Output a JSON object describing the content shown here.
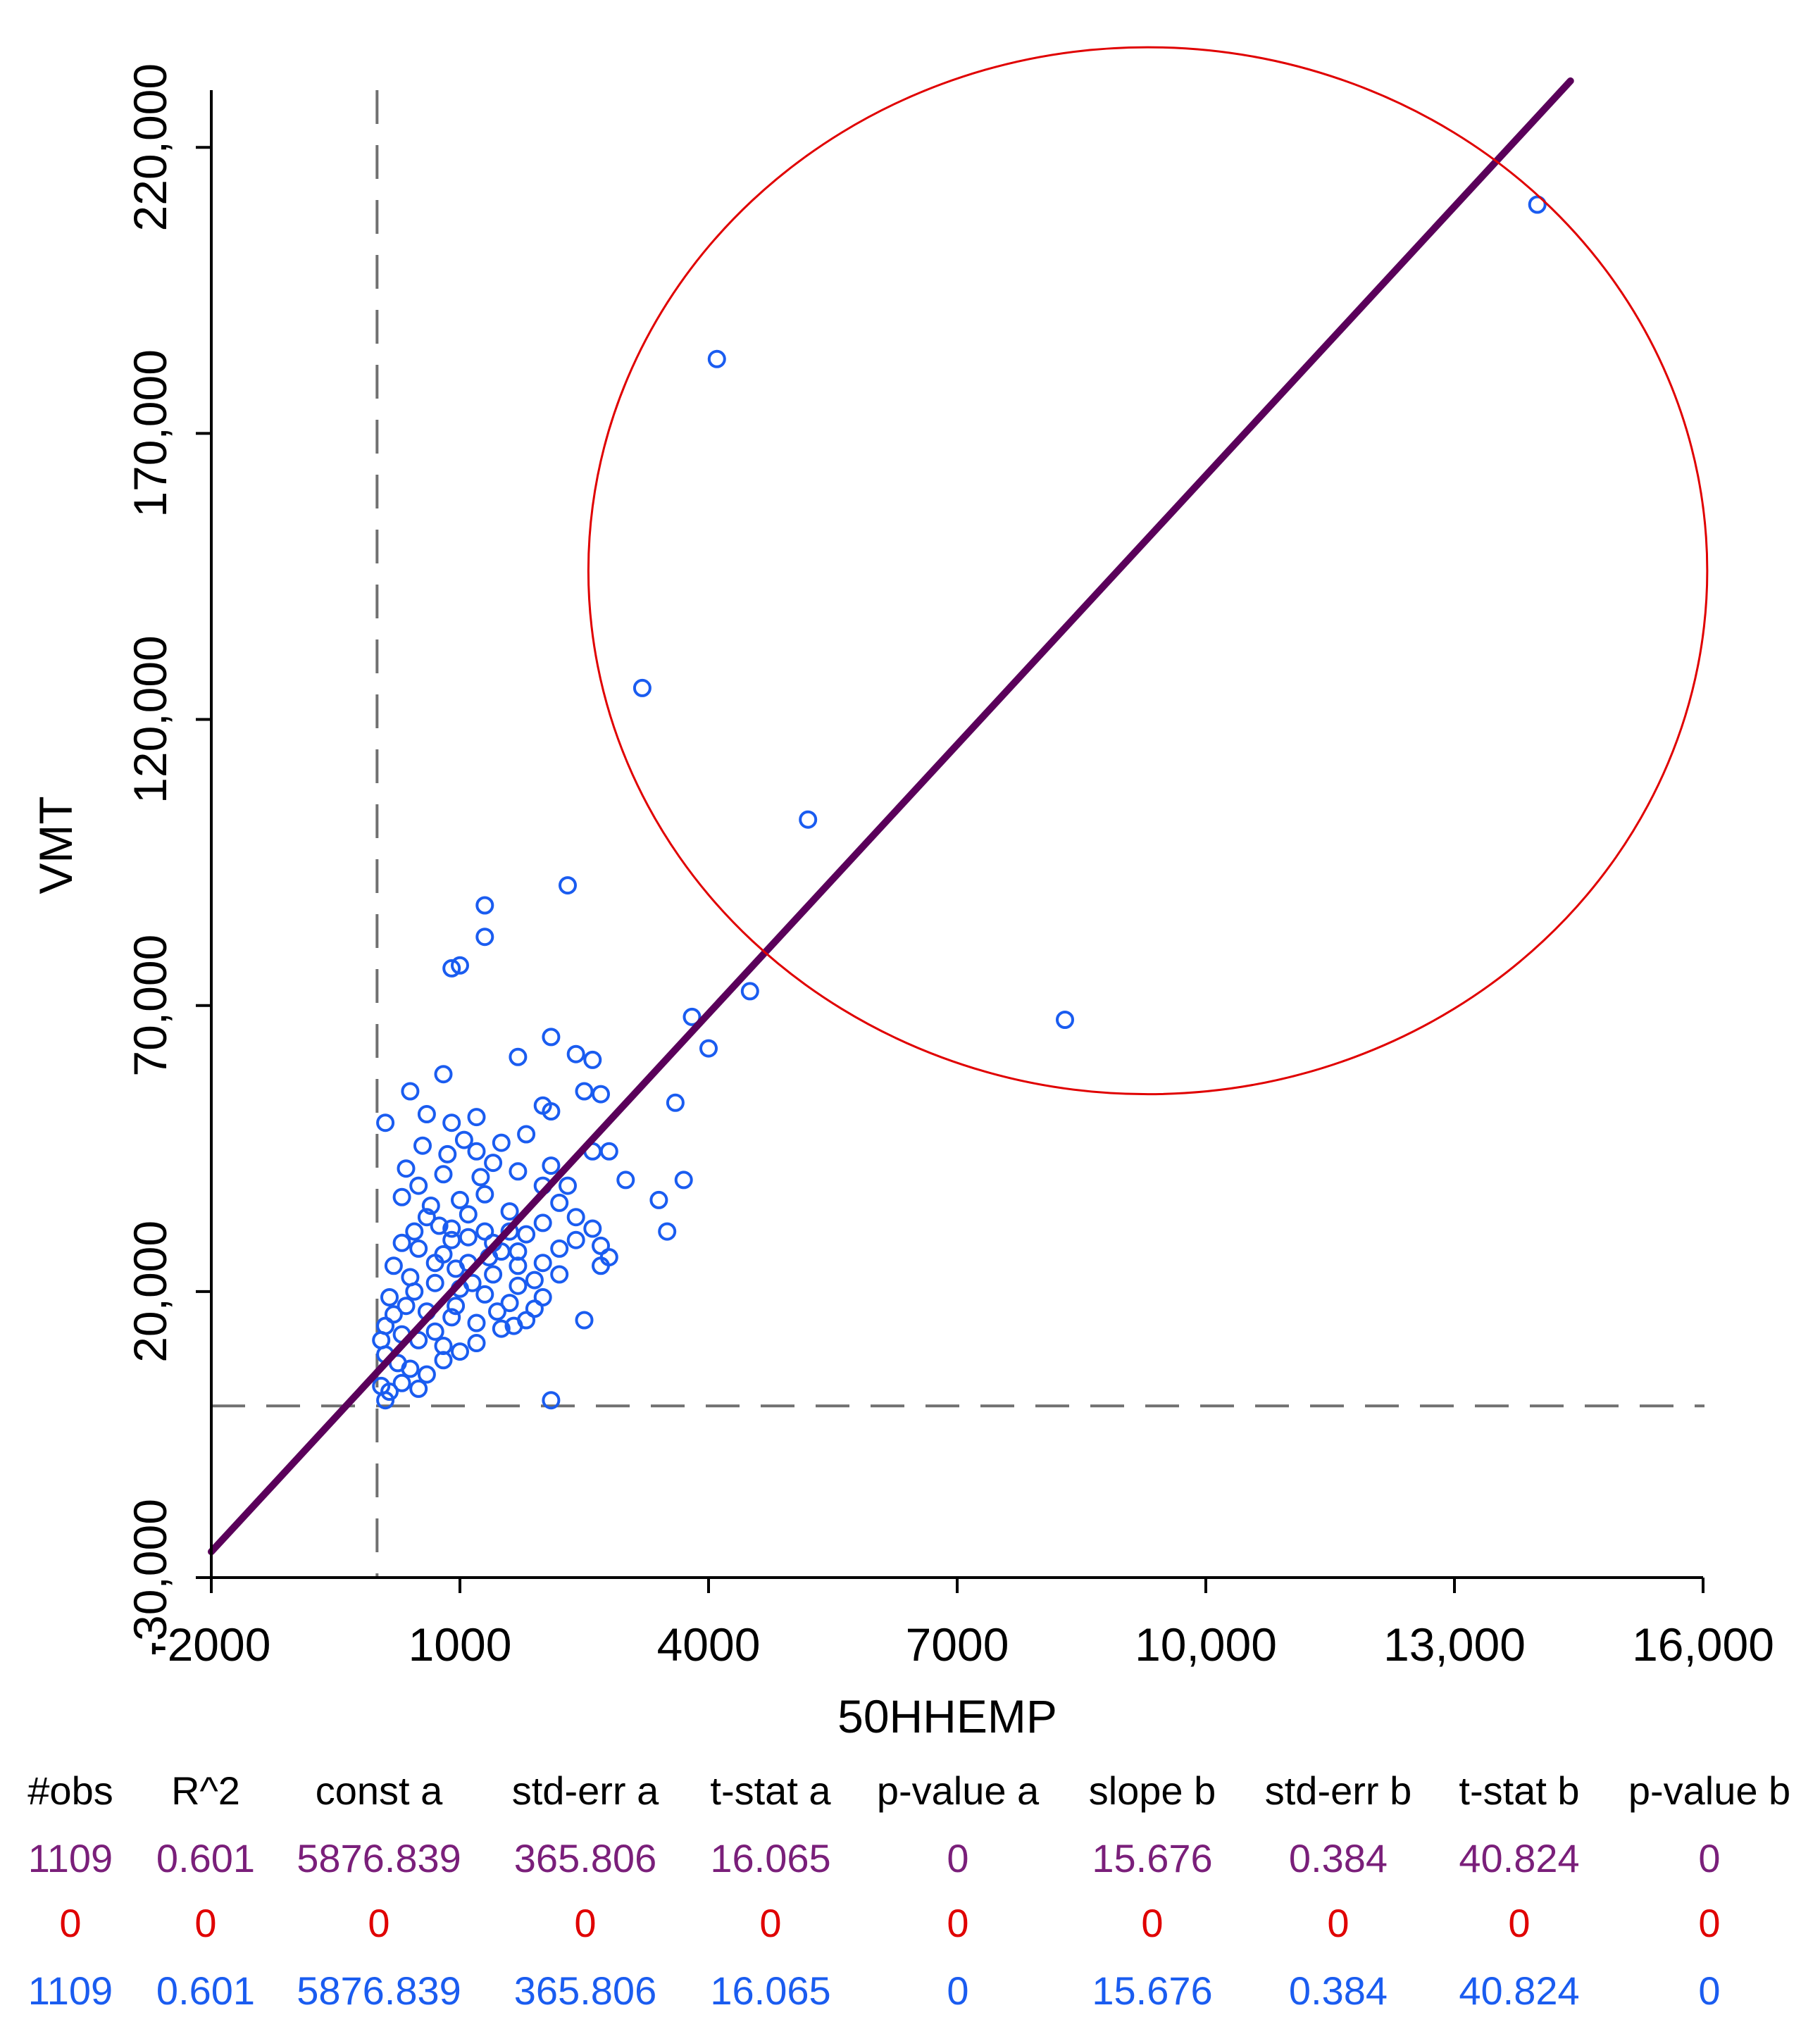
{
  "colors": {
    "point": "#1a5cf0",
    "fit_line": "#5a005a",
    "highlight_circle": "#e00000",
    "reference_lines": "#707070",
    "row_selected": "#7a1f7a",
    "row_unselected": "#e00000",
    "row_all": "#1a5cf0"
  },
  "chart_data": {
    "type": "scatter",
    "title": "",
    "xlabel": "50HHEMP",
    "ylabel": "VMT",
    "xlim": [
      -2000,
      16000
    ],
    "ylim": [
      -30000,
      230000
    ],
    "xticks": [
      -2000,
      1000,
      4000,
      7000,
      10000,
      13000,
      16000
    ],
    "yticks": [
      -30000,
      20000,
      70000,
      120000,
      170000,
      220000
    ],
    "xtick_labels": [
      "-2000",
      "1000",
      "4000",
      "7000",
      "10,000",
      "13,000",
      "16,000"
    ],
    "ytick_labels": [
      "-30,000",
      "20,000",
      "70,000",
      "120,000",
      "170,000",
      "220,000"
    ],
    "reference_lines": {
      "x_mean": 0,
      "y_mean": 0
    },
    "fit_line": {
      "intercept": 5876.839,
      "slope": 15.676,
      "x_range": [
        -2000,
        14400
      ]
    },
    "highlight_circle": {
      "cx": 9300,
      "cy": 146000,
      "rx": 6750,
      "ry": 91500
    },
    "points": [
      [
        14000,
        210000
      ],
      [
        4100,
        183000
      ],
      [
        3200,
        125500
      ],
      [
        5200,
        102500
      ],
      [
        8300,
        67500
      ],
      [
        2300,
        91000
      ],
      [
        1300,
        87500
      ],
      [
        1300,
        82000
      ],
      [
        900,
        76500
      ],
      [
        1000,
        77000
      ],
      [
        4500,
        72500
      ],
      [
        3800,
        68000
      ],
      [
        4000,
        62500
      ],
      [
        2100,
        64500
      ],
      [
        2400,
        61500
      ],
      [
        2600,
        60500
      ],
      [
        1700,
        61000
      ],
      [
        3600,
        53000
      ],
      [
        2500,
        55000
      ],
      [
        2700,
        54500
      ],
      [
        2000,
        52500
      ],
      [
        2100,
        51500
      ],
      [
        800,
        58000
      ],
      [
        400,
        55000
      ],
      [
        100,
        49500
      ],
      [
        3700,
        39500
      ],
      [
        3400,
        36000
      ],
      [
        3000,
        39500
      ],
      [
        2800,
        44500
      ],
      [
        2600,
        44500
      ],
      [
        3500,
        30500
      ],
      [
        2500,
        15000
      ],
      [
        2100,
        1000
      ],
      [
        2800,
        26000
      ],
      [
        2700,
        24500
      ],
      [
        2700,
        28000
      ],
      [
        2600,
        31000
      ],
      [
        2400,
        33000
      ],
      [
        2300,
        38500
      ],
      [
        2200,
        35500
      ],
      [
        600,
        51000
      ],
      [
        900,
        49500
      ],
      [
        1200,
        50500
      ],
      [
        1500,
        46000
      ],
      [
        1800,
        47500
      ],
      [
        1200,
        44500
      ],
      [
        1700,
        41000
      ],
      [
        1400,
        42500
      ],
      [
        2100,
        42000
      ],
      [
        2000,
        38500
      ],
      [
        800,
        40500
      ],
      [
        500,
        38500
      ],
      [
        300,
        36500
      ],
      [
        1000,
        36000
      ],
      [
        1300,
        37000
      ],
      [
        1600,
        34000
      ],
      [
        2000,
        32000
      ],
      [
        1800,
        30000
      ],
      [
        600,
        33000
      ],
      [
        900,
        31000
      ],
      [
        1100,
        29500
      ],
      [
        1400,
        28500
      ],
      [
        1700,
        27000
      ],
      [
        2000,
        25000
      ],
      [
        300,
        28500
      ],
      [
        500,
        27500
      ],
      [
        800,
        26500
      ],
      [
        1100,
        25000
      ],
      [
        1400,
        23000
      ],
      [
        1700,
        21000
      ],
      [
        200,
        24500
      ],
      [
        400,
        22500
      ],
      [
        700,
        21500
      ],
      [
        1000,
        20500
      ],
      [
        1300,
        19500
      ],
      [
        1600,
        18000
      ],
      [
        1900,
        17000
      ],
      [
        150,
        19000
      ],
      [
        350,
        17500
      ],
      [
        600,
        16500
      ],
      [
        900,
        15500
      ],
      [
        1200,
        14500
      ],
      [
        1500,
        13500
      ],
      [
        1800,
        15000
      ],
      [
        100,
        14000
      ],
      [
        300,
        12500
      ],
      [
        500,
        11500
      ],
      [
        800,
        10500
      ],
      [
        1000,
        9500
      ],
      [
        1200,
        11000
      ],
      [
        100,
        9000
      ],
      [
        250,
        7500
      ],
      [
        400,
        6500
      ],
      [
        600,
        5500
      ],
      [
        800,
        8000
      ],
      [
        50,
        3500
      ],
      [
        150,
        2500
      ],
      [
        300,
        4000
      ],
      [
        500,
        3000
      ],
      [
        100,
        1000
      ],
      [
        50,
        11500
      ],
      [
        200,
        16000
      ],
      [
        450,
        20000
      ],
      [
        700,
        25000
      ],
      [
        900,
        29000
      ],
      [
        1100,
        33500
      ],
      [
        1300,
        30500
      ],
      [
        1500,
        27000
      ],
      [
        1700,
        24500
      ],
      [
        1900,
        22000
      ],
      [
        2200,
        27500
      ],
      [
        2400,
        29000
      ],
      [
        2000,
        19000
      ],
      [
        2200,
        23000
      ],
      [
        1600,
        30500
      ],
      [
        700,
        13000
      ],
      [
        950,
        17500
      ],
      [
        1150,
        21500
      ],
      [
        1350,
        26000
      ],
      [
        450,
        30500
      ],
      [
        650,
        35000
      ],
      [
        850,
        44000
      ],
      [
        1050,
        46500
      ],
      [
        1250,
        40000
      ],
      [
        350,
        41500
      ],
      [
        550,
        45500
      ],
      [
        750,
        31500
      ],
      [
        950,
        24000
      ],
      [
        1450,
        16500
      ],
      [
        1650,
        14000
      ]
    ]
  },
  "stats_table": {
    "headers": [
      "#obs",
      "R^2",
      "const a",
      "std-err a",
      "t-stat a",
      "p-value a",
      "slope b",
      "std-err b",
      "t-stat b",
      "p-value b"
    ],
    "rows": [
      {
        "role": "selected",
        "values": [
          "1109",
          "0.601",
          "5876.839",
          "365.806",
          "16.065",
          "0",
          "15.676",
          "0.384",
          "40.824",
          "0"
        ]
      },
      {
        "role": "unselected",
        "values": [
          "0",
          "0",
          "0",
          "0",
          "0",
          "0",
          "0",
          "0",
          "0",
          "0"
        ]
      },
      {
        "role": "all",
        "values": [
          "1109",
          "0.601",
          "5876.839",
          "365.806",
          "16.065",
          "0",
          "15.676",
          "0.384",
          "40.824",
          "0"
        ]
      }
    ]
  }
}
